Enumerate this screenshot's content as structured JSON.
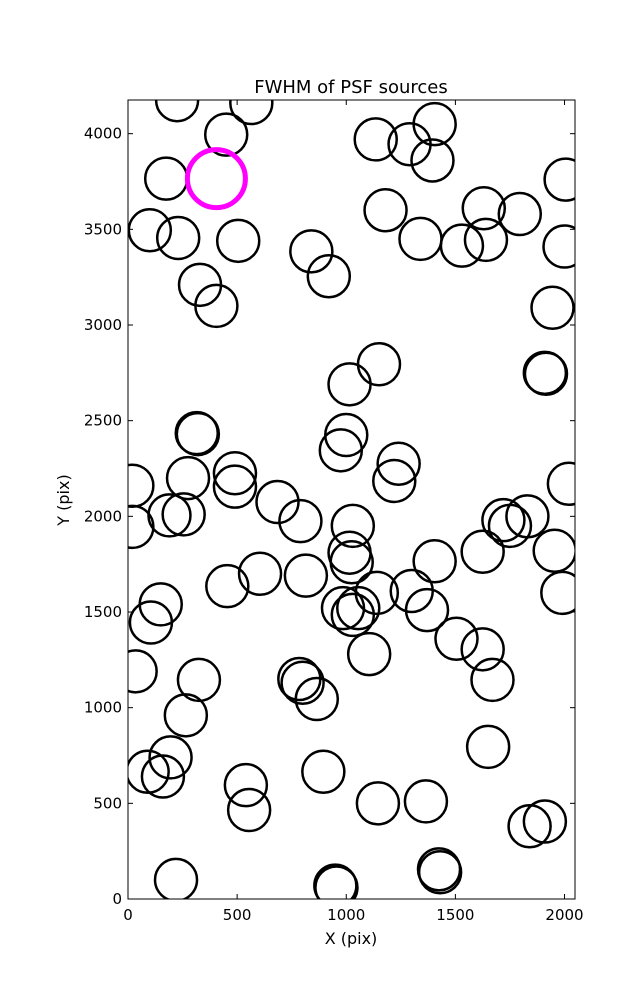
{
  "chart_data": {
    "type": "scatter",
    "title": "FWHM of PSF sources",
    "xlabel": "X (pix)",
    "ylabel": "Y (pix)",
    "xlim": [
      0,
      2048
    ],
    "ylim": [
      0,
      4176
    ],
    "xticks": [
      0,
      500,
      1000,
      1500,
      2000
    ],
    "yticks": [
      0,
      500,
      1000,
      1500,
      2000,
      2500,
      3000,
      3500,
      4000
    ],
    "grid": false,
    "marker": "open-circle",
    "highlight_color": "#ff00ff",
    "normal_color": "#000000",
    "highlighted": [
      {
        "x": 405,
        "y": 3765
      }
    ],
    "points": [
      {
        "x": 225,
        "y": 4175
      },
      {
        "x": 565,
        "y": 4160
      },
      {
        "x": 450,
        "y": 3995
      },
      {
        "x": 1135,
        "y": 3970
      },
      {
        "x": 1290,
        "y": 3945
      },
      {
        "x": 1405,
        "y": 4050
      },
      {
        "x": 1395,
        "y": 3860
      },
      {
        "x": 175,
        "y": 3765
      },
      {
        "x": 2005,
        "y": 3760
      },
      {
        "x": 1180,
        "y": 3600
      },
      {
        "x": 1630,
        "y": 3610
      },
      {
        "x": 1795,
        "y": 3580
      },
      {
        "x": 100,
        "y": 3495
      },
      {
        "x": 230,
        "y": 3455
      },
      {
        "x": 505,
        "y": 3440
      },
      {
        "x": 1340,
        "y": 3450
      },
      {
        "x": 1530,
        "y": 3415
      },
      {
        "x": 1640,
        "y": 3445
      },
      {
        "x": 2000,
        "y": 3410
      },
      {
        "x": 840,
        "y": 3385
      },
      {
        "x": 920,
        "y": 3255
      },
      {
        "x": 330,
        "y": 3210
      },
      {
        "x": 405,
        "y": 3100
      },
      {
        "x": 1945,
        "y": 3090
      },
      {
        "x": 1150,
        "y": 2795
      },
      {
        "x": 1015,
        "y": 2690
      },
      {
        "x": 1915,
        "y": 2745
      },
      {
        "x": 1910,
        "y": 2750
      },
      {
        "x": 315,
        "y": 2435
      },
      {
        "x": 320,
        "y": 2430
      },
      {
        "x": 1000,
        "y": 2425
      },
      {
        "x": 975,
        "y": 2345
      },
      {
        "x": 1240,
        "y": 2275
      },
      {
        "x": 1220,
        "y": 2185
      },
      {
        "x": 490,
        "y": 2225
      },
      {
        "x": 490,
        "y": 2155
      },
      {
        "x": 275,
        "y": 2200
      },
      {
        "x": 20,
        "y": 2160
      },
      {
        "x": 2020,
        "y": 2170
      },
      {
        "x": 685,
        "y": 2075
      },
      {
        "x": 790,
        "y": 1975
      },
      {
        "x": 190,
        "y": 2005
      },
      {
        "x": 255,
        "y": 2010
      },
      {
        "x": 20,
        "y": 1945
      },
      {
        "x": 1720,
        "y": 1980
      },
      {
        "x": 1750,
        "y": 1950
      },
      {
        "x": 1830,
        "y": 2000
      },
      {
        "x": 1030,
        "y": 1950
      },
      {
        "x": 1015,
        "y": 1810
      },
      {
        "x": 1025,
        "y": 1760
      },
      {
        "x": 1405,
        "y": 1765
      },
      {
        "x": 1625,
        "y": 1815
      },
      {
        "x": 1955,
        "y": 1820
      },
      {
        "x": 605,
        "y": 1700
      },
      {
        "x": 815,
        "y": 1690
      },
      {
        "x": 455,
        "y": 1635
      },
      {
        "x": 1140,
        "y": 1600
      },
      {
        "x": 1300,
        "y": 1610
      },
      {
        "x": 1990,
        "y": 1600
      },
      {
        "x": 150,
        "y": 1540
      },
      {
        "x": 105,
        "y": 1445
      },
      {
        "x": 985,
        "y": 1520
      },
      {
        "x": 1055,
        "y": 1520
      },
      {
        "x": 1030,
        "y": 1485
      },
      {
        "x": 1370,
        "y": 1510
      },
      {
        "x": 1505,
        "y": 1360
      },
      {
        "x": 1625,
        "y": 1305
      },
      {
        "x": 1105,
        "y": 1280
      },
      {
        "x": 35,
        "y": 1190
      },
      {
        "x": 325,
        "y": 1145
      },
      {
        "x": 785,
        "y": 1150
      },
      {
        "x": 800,
        "y": 1130
      },
      {
        "x": 865,
        "y": 1045
      },
      {
        "x": 1670,
        "y": 1145
      },
      {
        "x": 265,
        "y": 960
      },
      {
        "x": 1650,
        "y": 795
      },
      {
        "x": 195,
        "y": 740
      },
      {
        "x": 90,
        "y": 665
      },
      {
        "x": 160,
        "y": 640
      },
      {
        "x": 895,
        "y": 665
      },
      {
        "x": 540,
        "y": 595
      },
      {
        "x": 555,
        "y": 465
      },
      {
        "x": 1145,
        "y": 500
      },
      {
        "x": 1365,
        "y": 510
      },
      {
        "x": 1840,
        "y": 380
      },
      {
        "x": 1910,
        "y": 405
      },
      {
        "x": 220,
        "y": 100
      },
      {
        "x": 950,
        "y": 70
      },
      {
        "x": 955,
        "y": 60
      },
      {
        "x": 1425,
        "y": 155
      },
      {
        "x": 1430,
        "y": 140
      }
    ]
  }
}
